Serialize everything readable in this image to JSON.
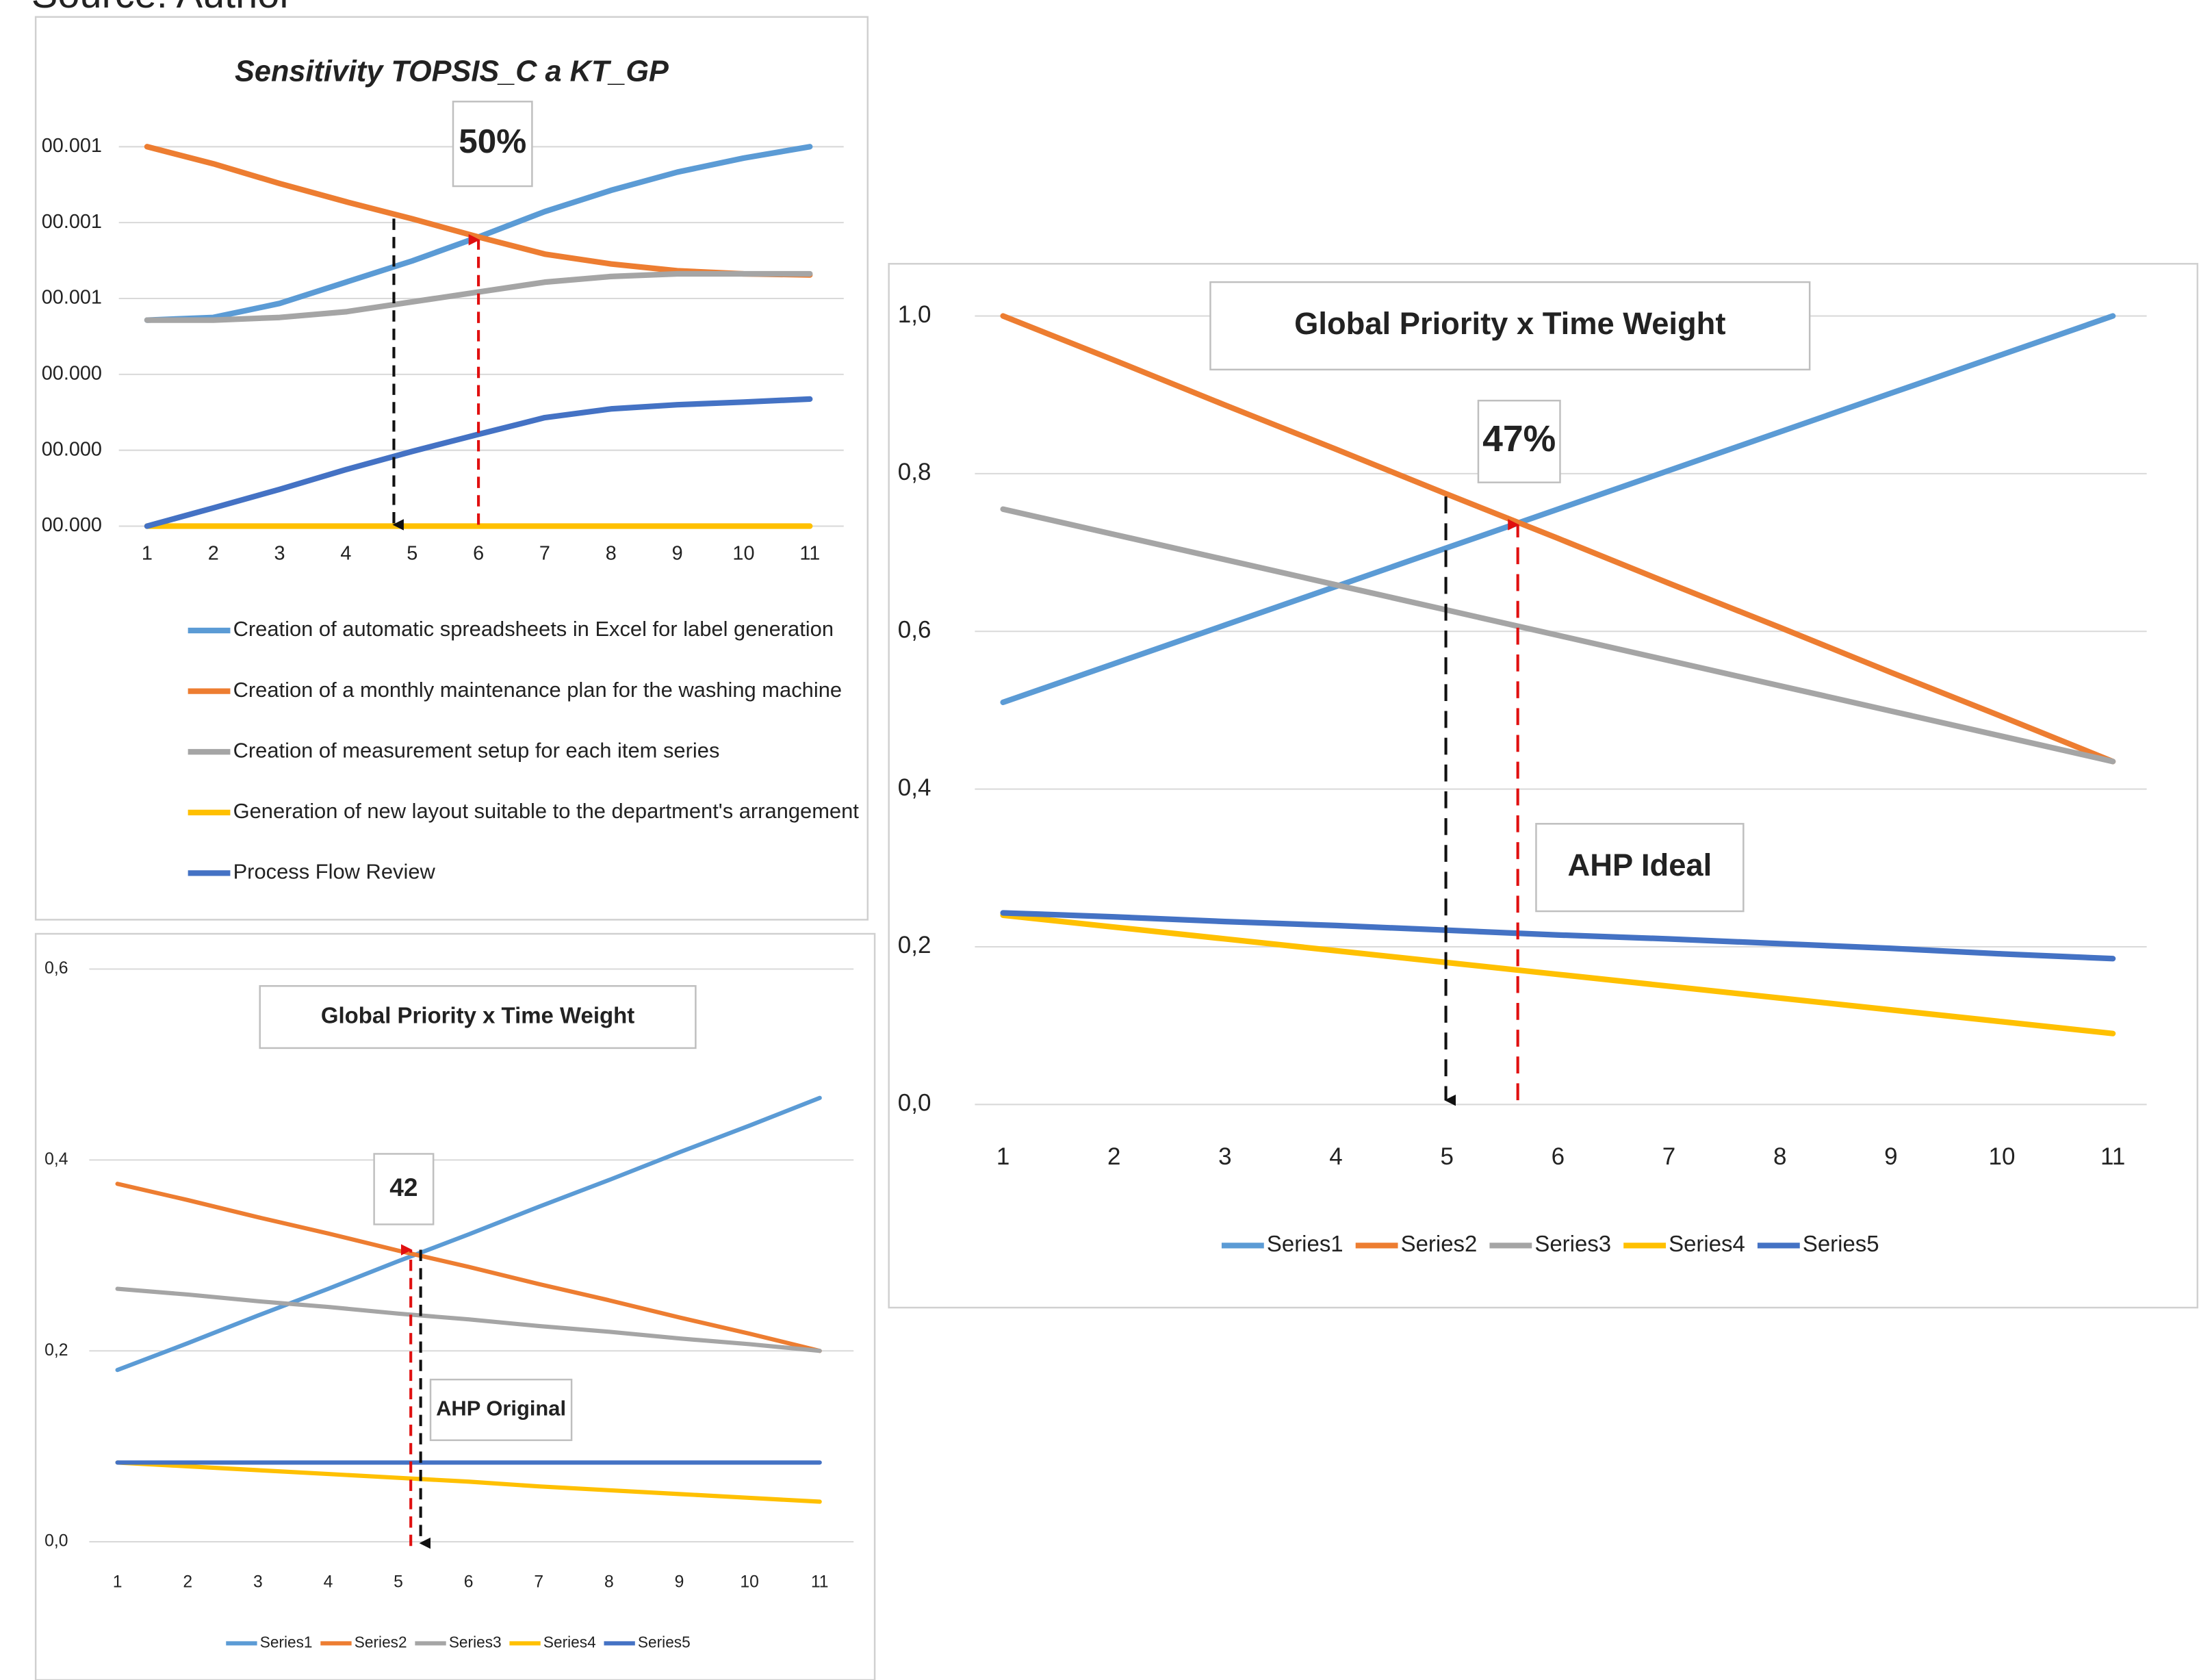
{
  "source": "Source: Author",
  "chart_data": [
    {
      "type": "line",
      "title": "Sensitivity TOPSIS_C a KT_GP",
      "annotations": [
        "50%"
      ],
      "x": [
        1,
        2,
        3,
        4,
        5,
        6,
        7,
        8,
        9,
        10,
        11
      ],
      "xlim": [
        1,
        11
      ],
      "xticks": [
        1,
        2,
        3,
        4,
        5,
        6,
        7,
        8,
        9,
        10,
        11
      ],
      "ylim": [
        0,
        0.001
      ],
      "yticks": [
        {
          "value": 0,
          "label": "00.000"
        },
        {
          "value": 0.0002,
          "label": "00.000"
        },
        {
          "value": 0.0004,
          "label": "00.000"
        },
        {
          "value": 0.0006,
          "label": "00.001"
        },
        {
          "value": 0.0008,
          "label": "00.001"
        },
        {
          "value": 0.001,
          "label": "00.001"
        }
      ],
      "grid": true,
      "legend": "bottom",
      "series": [
        {
          "name": "Creation of automatic spreadsheets in Excel for label generation",
          "color": "#5b9bd5",
          "values": [
            0.000543,
            0.00055,
            0.000587,
            0.000643,
            0.000699,
            0.000762,
            0.000829,
            0.000885,
            0.000933,
            0.00097,
            0.001
          ]
        },
        {
          "name": "Creation of a monthly maintenance plan for the washing machine",
          "color": "#ed7d31",
          "values": [
            0.001,
            0.000955,
            0.000903,
            0.000855,
            0.00081,
            0.000762,
            0.000717,
            0.000691,
            0.000673,
            0.000665,
            0.000662
          ]
        },
        {
          "name": "Creation of measurement setup for each item series",
          "color": "#a5a5a5",
          "values": [
            0.000543,
            0.000543,
            0.00055,
            0.000565,
            0.000591,
            0.000617,
            0.000643,
            0.000658,
            0.000665,
            0.000665,
            0.000665
          ]
        },
        {
          "name": "Generation of new layout suitable to the department's arrangement",
          "color": "#ffc000",
          "values": [
            0,
            0,
            0,
            0,
            0,
            0,
            0,
            0,
            0,
            0,
            0
          ]
        },
        {
          "name": "Process Flow Review",
          "color": "#4472c4",
          "values": [
            0,
            4.8e-05,
            9.7e-05,
            0.000149,
            0.000197,
            0.000242,
            0.000286,
            0.000309,
            0.00032,
            0.000327,
            0.000335
          ]
        }
      ]
    },
    {
      "type": "line",
      "title": "Global Priority x Time Weight",
      "annotations": [
        "47%",
        "AHP Ideal"
      ],
      "x": [
        1,
        2,
        3,
        4,
        5,
        6,
        7,
        8,
        9,
        10,
        11
      ],
      "xlim": [
        1,
        11
      ],
      "xticks": [
        1,
        2,
        3,
        4,
        5,
        6,
        7,
        8,
        9,
        10,
        11
      ],
      "ylim": [
        0,
        1
      ],
      "yticks": [
        {
          "value": 0,
          "label": "0,0"
        },
        {
          "value": 0.2,
          "label": "0,2"
        },
        {
          "value": 0.4,
          "label": "0,4"
        },
        {
          "value": 0.6,
          "label": "0,6"
        },
        {
          "value": 0.8,
          "label": "0,8"
        },
        {
          "value": 1,
          "label": "1,0"
        }
      ],
      "grid": true,
      "legend": "bottom",
      "series": [
        {
          "name": "Series1",
          "color": "#5b9bd5",
          "values": [
            0.51,
            0.559,
            0.608,
            0.657,
            0.706,
            0.755,
            0.804,
            0.853,
            0.902,
            0.951,
            1.0
          ]
        },
        {
          "name": "Series2",
          "color": "#ed7d31",
          "values": [
            1.0,
            0.944,
            0.887,
            0.831,
            0.774,
            0.718,
            0.661,
            0.605,
            0.548,
            0.492,
            0.435
          ]
        },
        {
          "name": "Series3",
          "color": "#a5a5a5",
          "values": [
            0.755,
            0.723,
            0.691,
            0.659,
            0.627,
            0.595,
            0.563,
            0.531,
            0.499,
            0.467,
            0.435
          ]
        },
        {
          "name": "Series4",
          "color": "#ffc000",
          "values": [
            0.24,
            0.225,
            0.21,
            0.195,
            0.18,
            0.165,
            0.15,
            0.135,
            0.12,
            0.105,
            0.09
          ]
        },
        {
          "name": "Series5",
          "color": "#4472c4",
          "values": [
            0.243,
            0.238,
            0.232,
            0.227,
            0.221,
            0.215,
            0.21,
            0.204,
            0.198,
            0.191,
            0.185
          ]
        }
      ]
    },
    {
      "type": "line",
      "title": "Global Priority x Time Weight",
      "annotations": [
        "42",
        "AHP Original"
      ],
      "x": [
        1,
        2,
        3,
        4,
        5,
        6,
        7,
        8,
        9,
        10,
        11
      ],
      "xlim": [
        1,
        11
      ],
      "xticks": [
        1,
        2,
        3,
        4,
        5,
        6,
        7,
        8,
        9,
        10,
        11
      ],
      "ylim": [
        0,
        0.6
      ],
      "yticks": [
        {
          "value": 0,
          "label": "0,0"
        },
        {
          "value": 0.2,
          "label": "0,2"
        },
        {
          "value": 0.4,
          "label": "0,4"
        },
        {
          "value": 0.6,
          "label": "0,6"
        }
      ],
      "grid": true,
      "legend": "bottom",
      "series": [
        {
          "name": "Series1",
          "color": "#5b9bd5",
          "values": [
            0.18,
            0.208,
            0.237,
            0.265,
            0.294,
            0.322,
            0.351,
            0.379,
            0.408,
            0.436,
            0.465
          ]
        },
        {
          "name": "Series2",
          "color": "#ed7d31",
          "values": [
            0.375,
            0.358,
            0.34,
            0.323,
            0.305,
            0.288,
            0.27,
            0.253,
            0.235,
            0.218,
            0.2
          ]
        },
        {
          "name": "Series3",
          "color": "#a5a5a5",
          "values": [
            0.265,
            0.259,
            0.252,
            0.246,
            0.239,
            0.233,
            0.226,
            0.22,
            0.213,
            0.207,
            0.2
          ]
        },
        {
          "name": "Series4",
          "color": "#ffc000",
          "values": [
            0.083,
            0.079,
            0.075,
            0.071,
            0.067,
            0.063,
            0.058,
            0.054,
            0.05,
            0.046,
            0.042
          ]
        },
        {
          "name": "Series5",
          "color": "#4472c4",
          "values": [
            0.083,
            0.083,
            0.083,
            0.083,
            0.083,
            0.083,
            0.083,
            0.083,
            0.083,
            0.083,
            0.083
          ]
        }
      ]
    }
  ]
}
